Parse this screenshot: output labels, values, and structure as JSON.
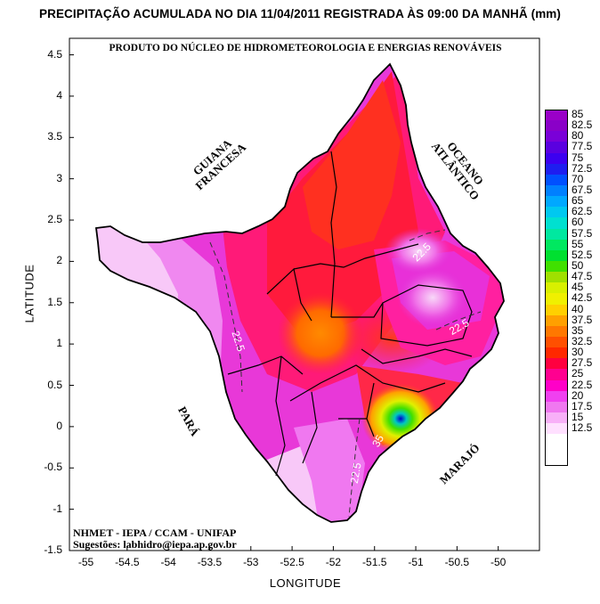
{
  "title": "PRECIPITAÇÃO ACUMULADA NO DIA 11/04/2011 REGISTRADA ÀS 09:00 DA MANHÃ (mm)",
  "banner": "PRODUTO DO NÚCLEO DE HIDROMETEOROLOGIA E ENERGIAS RENOVÁVEIS",
  "axes": {
    "x_title": "LONGITUDE",
    "y_title": "LATITUDE",
    "x_ticks": [
      "-55",
      "-54.5",
      "-54",
      "-53.5",
      "-53",
      "-52.5",
      "-52",
      "-51.5",
      "-51",
      "-50.5",
      "-50"
    ],
    "y_ticks": [
      "4.5",
      "4",
      "3.5",
      "3",
      "2.5",
      "2",
      "1.5",
      "1",
      "0.5",
      "0",
      "-0.5",
      "-1",
      "-1.5"
    ],
    "x_range": [
      -55.2,
      -49.5
    ],
    "y_range": [
      -1.5,
      4.7
    ]
  },
  "regions": {
    "guiana": [
      "GUIANA",
      "FRANCESA"
    ],
    "oceano": [
      "OCEANO",
      "ATLÂNTICO"
    ],
    "para": "PARÁ",
    "marajo": "MARAJÓ"
  },
  "credit": {
    "line1": "NHMET - IEPA  /  CCAM - UNIFAP",
    "line2": "Sugestões: labhidro@iepa.ap.gov.br"
  },
  "contour_labels": [
    "22.5",
    "22.5",
    "22.5",
    "22.5",
    "35",
    "27.5"
  ],
  "legend": {
    "labels": [
      "85",
      "82.5",
      "80",
      "77.5",
      "75",
      "72.5",
      "70",
      "67.5",
      "65",
      "62.5",
      "60",
      "57.5",
      "55",
      "52.5",
      "50",
      "47.5",
      "45",
      "42.5",
      "40",
      "37.5",
      "35",
      "32.5",
      "30",
      "27.5",
      "25",
      "22.5",
      "20",
      "17.5",
      "15",
      "12.5"
    ],
    "colors": [
      "#9a00c8",
      "#8a00c8",
      "#7a00d8",
      "#5a00e0",
      "#3c00f0",
      "#1e1ef0",
      "#0050ff",
      "#0080ff",
      "#00a8ff",
      "#00c8f0",
      "#00e0d0",
      "#00e8a0",
      "#00e860",
      "#00e030",
      "#40e000",
      "#a0e000",
      "#d8f000",
      "#f0f000",
      "#ffd000",
      "#ffa000",
      "#ff7800",
      "#ff5000",
      "#ff2800",
      "#ff0040",
      "#ff0090",
      "#ff00c8",
      "#f040f0",
      "#f078f0",
      "#f8b0f8",
      "#ffe0ff"
    ]
  }
}
